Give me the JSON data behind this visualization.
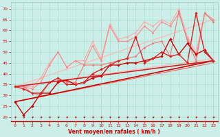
{
  "background_color": "#cceee8",
  "grid_color": "#aaddcc",
  "xlabel": "Vent moyen/en rafales ( km/h )",
  "xlabel_color": "#cc0000",
  "ylabel_ticks": [
    20,
    25,
    30,
    35,
    40,
    45,
    50,
    55,
    60,
    65,
    70
  ],
  "xlim": [
    -0.5,
    23.5
  ],
  "ylim": [
    18,
    73
  ],
  "series": [
    {
      "x": [
        0,
        23
      ],
      "y": [
        34,
        65
      ],
      "color": "#ffbbbb",
      "lw": 1.0,
      "marker": null,
      "ms": 0,
      "zorder": 1
    },
    {
      "x": [
        0,
        23
      ],
      "y": [
        34,
        47
      ],
      "color": "#ffbbbb",
      "lw": 1.0,
      "marker": null,
      "ms": 0,
      "zorder": 1
    },
    {
      "x": [
        0,
        23
      ],
      "y": [
        27,
        45
      ],
      "color": "#ee6666",
      "lw": 0.8,
      "marker": null,
      "ms": 0,
      "zorder": 1
    },
    {
      "x": [
        0,
        1,
        2,
        3,
        4,
        5,
        6,
        7,
        8,
        9,
        10,
        11,
        12,
        13,
        14,
        15,
        16,
        17,
        18,
        19,
        20,
        21,
        22,
        23
      ],
      "y": [
        34,
        34,
        34,
        38,
        45,
        50,
        43,
        46,
        46,
        55,
        47,
        63,
        56,
        57,
        59,
        64,
        62,
        65,
        63,
        70,
        57,
        50,
        68,
        65
      ],
      "color": "#ffaaaa",
      "lw": 0.8,
      "marker": "D",
      "ms": 1.8,
      "zorder": 2
    },
    {
      "x": [
        0,
        1,
        2,
        3,
        4,
        5,
        6,
        7,
        8,
        9,
        10,
        11,
        12,
        13,
        14,
        15,
        16,
        17,
        18,
        19,
        20,
        21,
        22,
        23
      ],
      "y": [
        34,
        34,
        33,
        36,
        44,
        50,
        43,
        46,
        44,
        53,
        46,
        62,
        55,
        55,
        57,
        62,
        59,
        64,
        62,
        68,
        56,
        48,
        68,
        65
      ],
      "color": "#ff8888",
      "lw": 0.8,
      "marker": "D",
      "ms": 1.8,
      "zorder": 2
    },
    {
      "x": [
        0,
        1,
        2,
        3,
        4,
        5,
        6,
        7,
        8,
        9,
        10,
        11,
        12,
        13,
        14,
        15,
        16,
        17,
        18,
        19,
        20,
        21,
        22,
        23
      ],
      "y": [
        34,
        34,
        31,
        30,
        36,
        38,
        36,
        36,
        44,
        44,
        44,
        45,
        46,
        47,
        48,
        52,
        54,
        55,
        48,
        69,
        55,
        46,
        68,
        64
      ],
      "color": "#ee7777",
      "lw": 0.8,
      "marker": "D",
      "ms": 1.8,
      "zorder": 2
    },
    {
      "x": [
        0,
        1,
        2,
        3,
        4,
        5,
        6,
        7,
        8,
        9,
        10,
        11,
        12,
        13,
        14,
        15,
        16,
        17,
        18,
        19,
        20,
        21,
        22,
        23
      ],
      "y": [
        27,
        21,
        25,
        31,
        31,
        36,
        37,
        35,
        36,
        38,
        39,
        44,
        44,
        45,
        45,
        46,
        47,
        48,
        56,
        49,
        54,
        49,
        51,
        46
      ],
      "color": "#cc0000",
      "lw": 1.0,
      "marker": "D",
      "ms": 2.2,
      "zorder": 4
    },
    {
      "x": [
        0,
        1,
        2,
        3,
        4,
        5,
        6,
        7,
        8,
        9,
        10,
        11,
        12,
        13,
        14,
        15,
        16,
        17,
        18,
        19,
        20,
        21,
        22,
        23
      ],
      "y": [
        34,
        33,
        31,
        31,
        36,
        38,
        35,
        35,
        36,
        40,
        42,
        44,
        46,
        47,
        57,
        45,
        47,
        50,
        48,
        49,
        45,
        68,
        50,
        46
      ],
      "color": "#dd2222",
      "lw": 1.0,
      "marker": "D",
      "ms": 2.2,
      "zorder": 4
    },
    {
      "x": [
        0,
        23
      ],
      "y": [
        27,
        46
      ],
      "color": "#cc0000",
      "lw": 1.2,
      "marker": null,
      "ms": 0,
      "zorder": 3
    },
    {
      "x": [
        0,
        23
      ],
      "y": [
        34,
        46
      ],
      "color": "#cc2222",
      "lw": 1.2,
      "marker": null,
      "ms": 0,
      "zorder": 3
    }
  ],
  "wind_arrows": {
    "color": "#cc0000",
    "y_data": 19.2,
    "count": 24
  }
}
